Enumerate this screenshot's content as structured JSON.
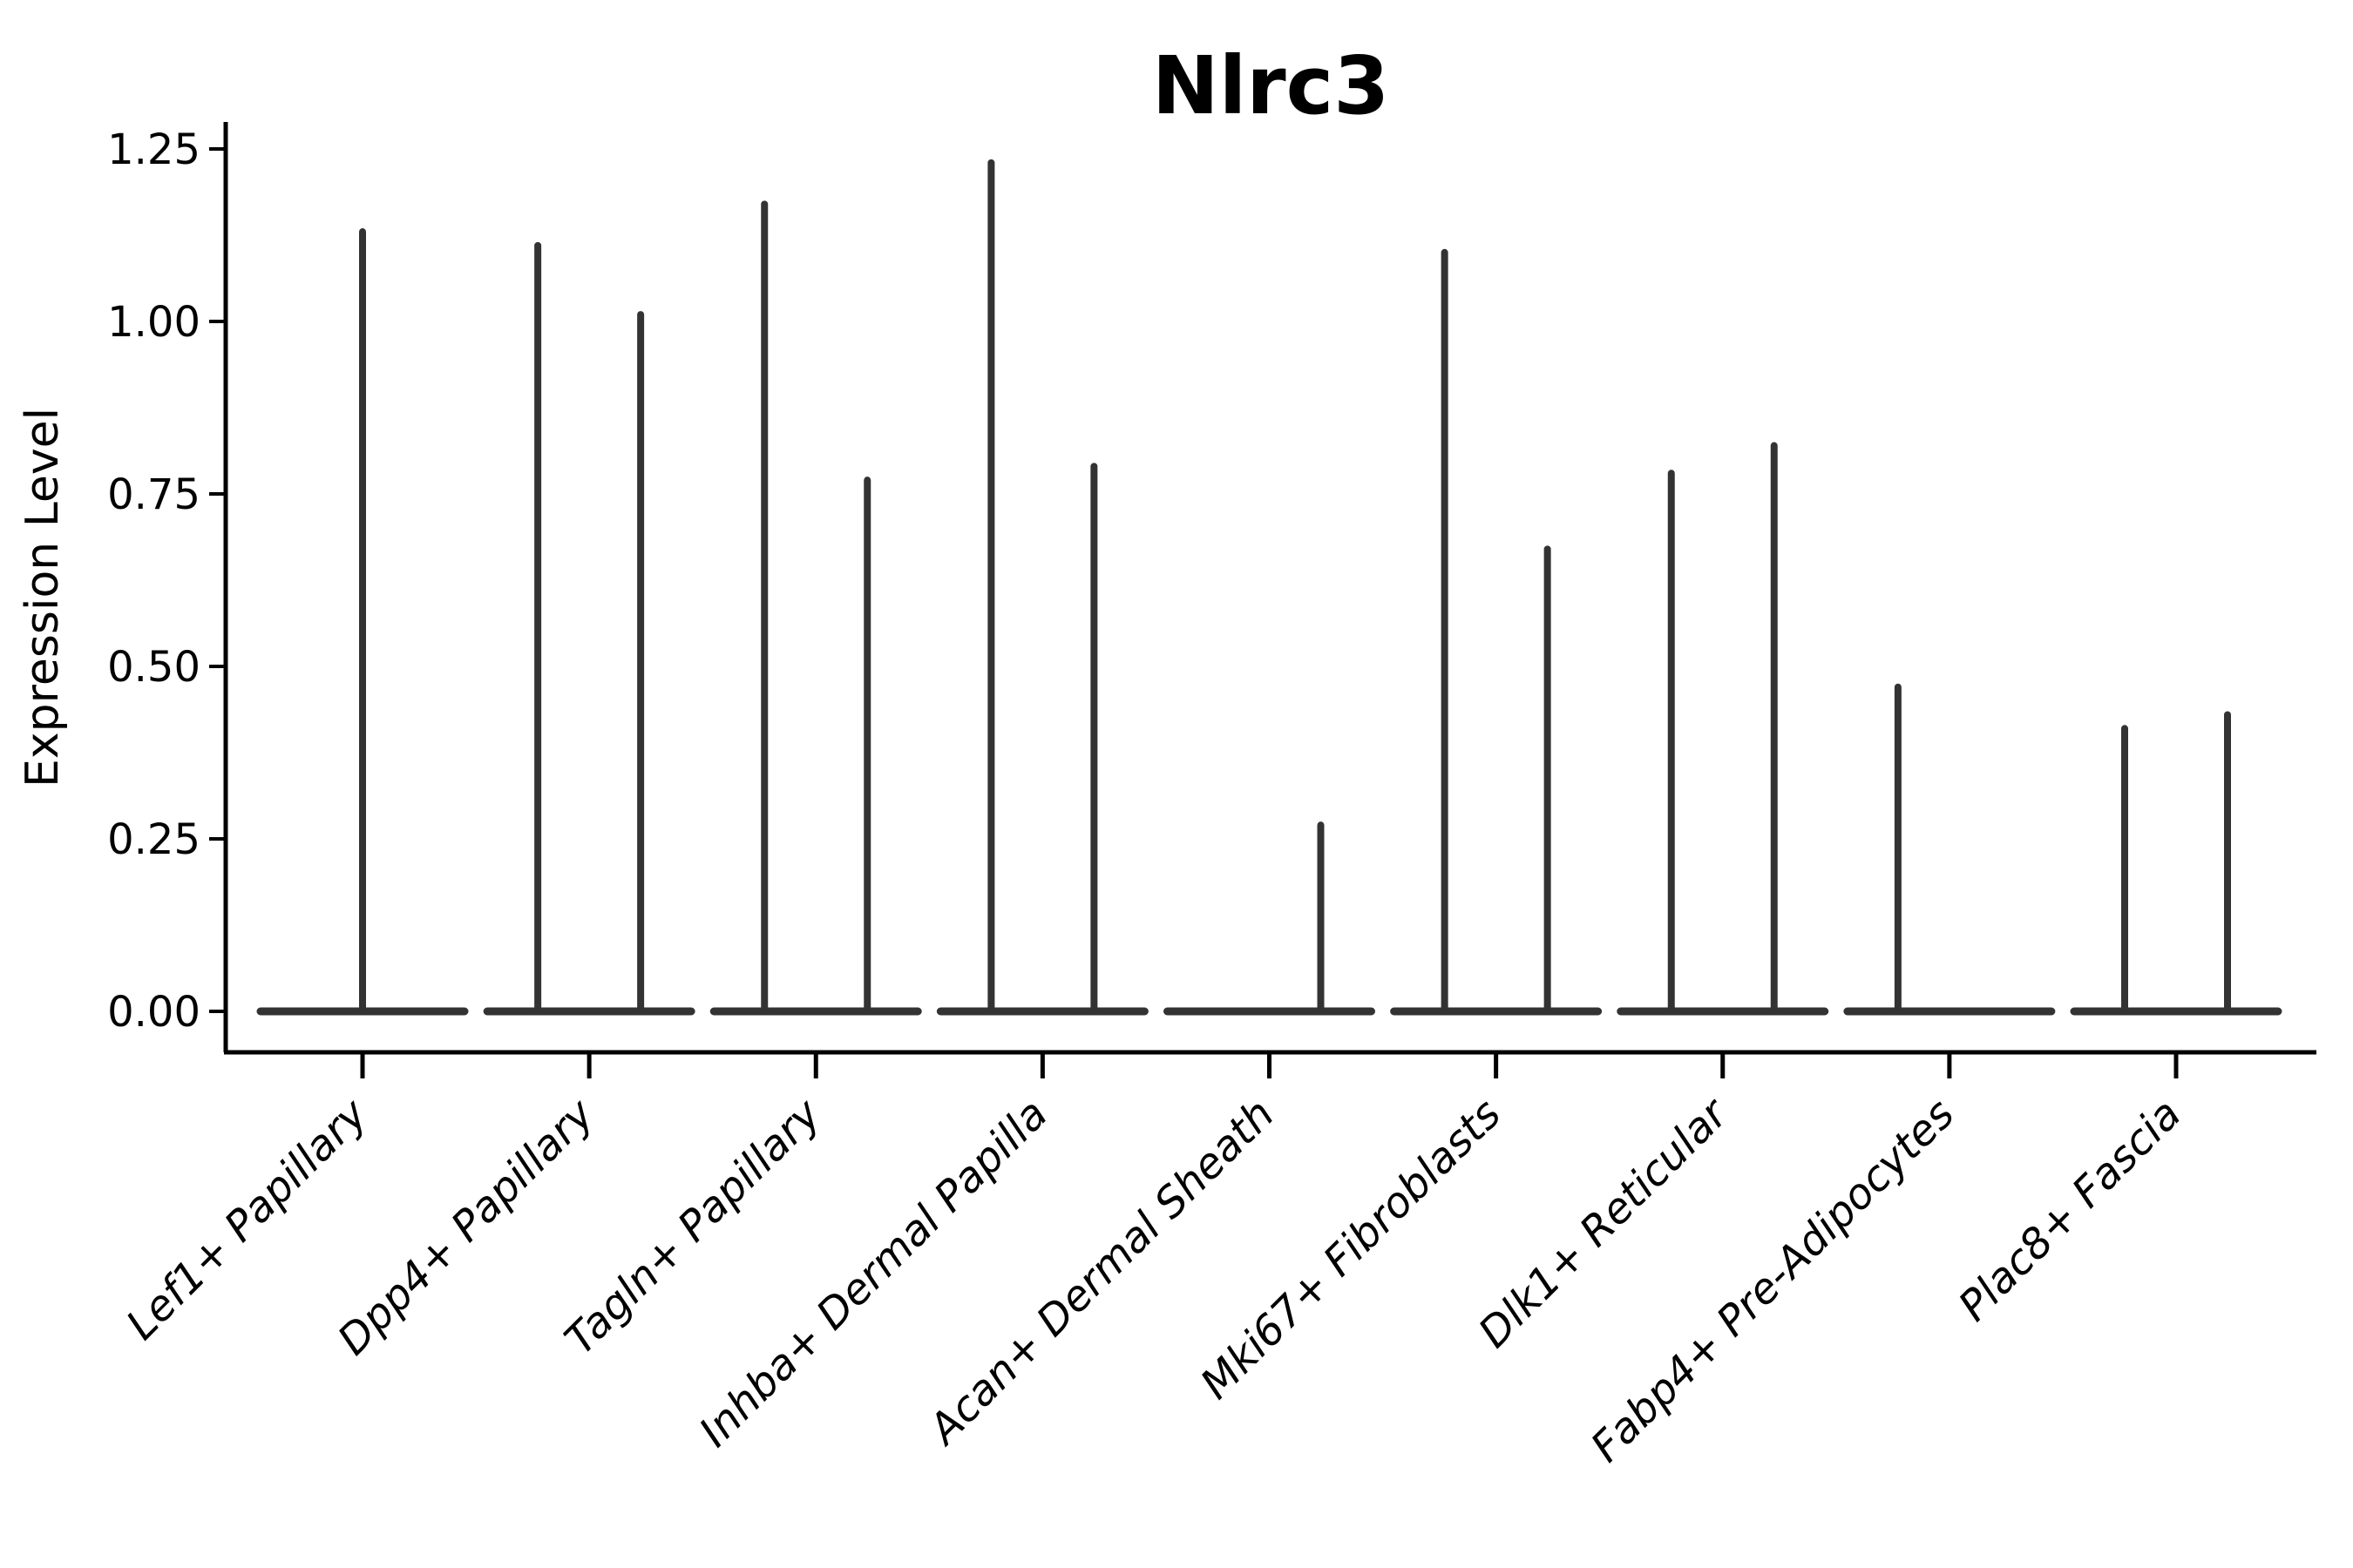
{
  "chart_data": {
    "type": "violin",
    "title": "Nlrc3",
    "ylabel": "Expression Level",
    "xlabel": "",
    "ylim": [
      -0.06,
      1.29
    ],
    "yticks": [
      "0.00",
      "0.25",
      "0.50",
      "0.75",
      "1.00",
      "1.25"
    ],
    "grid": false,
    "legend": "none",
    "violin_style": "flat base at 0 with thin spike to max expression",
    "categories": [
      {
        "label": "Lef1+ Papillary",
        "violins": [
          {
            "span": "full",
            "min": 0,
            "max": 1.13
          }
        ]
      },
      {
        "label": "Dpp4+ Papillary",
        "violins": [
          {
            "span": "left",
            "min": 0,
            "max": 1.11
          },
          {
            "span": "right",
            "min": 0,
            "max": 1.01
          }
        ]
      },
      {
        "label": "Tagln+ Papillary",
        "violins": [
          {
            "span": "left",
            "min": 0,
            "max": 1.17
          },
          {
            "span": "right",
            "min": 0,
            "max": 0.77
          }
        ]
      },
      {
        "label": "Inhba+ Dermal Papilla",
        "violins": [
          {
            "span": "left",
            "min": 0,
            "max": 1.23
          },
          {
            "span": "right",
            "min": 0,
            "max": 0.79
          }
        ]
      },
      {
        "label": "Acan+ Dermal Sheath",
        "violins": [
          {
            "span": "left",
            "min": 0,
            "max": 0.0
          },
          {
            "span": "right",
            "min": 0,
            "max": 0.27
          }
        ]
      },
      {
        "label": "Mki67+ Fibroblasts",
        "violins": [
          {
            "span": "left",
            "min": 0,
            "max": 1.1
          },
          {
            "span": "right",
            "min": 0,
            "max": 0.67
          }
        ]
      },
      {
        "label": "Dlk1+ Reticular",
        "violins": [
          {
            "span": "left",
            "min": 0,
            "max": 0.78
          },
          {
            "span": "right",
            "min": 0,
            "max": 0.82
          }
        ]
      },
      {
        "label": "Fabp4+ Pre-Adipocytes",
        "violins": [
          {
            "span": "left",
            "min": 0,
            "max": 0.47
          },
          {
            "span": "right",
            "min": 0,
            "max": 0.0
          }
        ]
      },
      {
        "label": "Plac8+ Fascia",
        "violins": [
          {
            "span": "left",
            "min": 0,
            "max": 0.41
          },
          {
            "span": "right",
            "min": 0,
            "max": 0.43
          }
        ]
      }
    ],
    "colors": {
      "violin": "#333333",
      "axis": "#000000",
      "text": "#000000",
      "background": "#ffffff"
    }
  }
}
